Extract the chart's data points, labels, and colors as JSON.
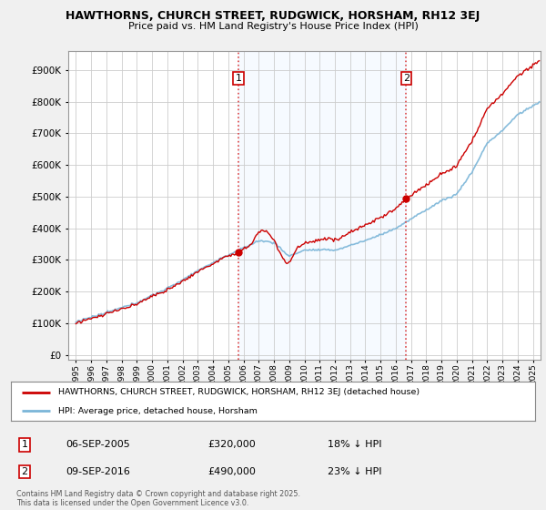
{
  "title1": "HAWTHORNS, CHURCH STREET, RUDGWICK, HORSHAM, RH12 3EJ",
  "title2": "Price paid vs. HM Land Registry's House Price Index (HPI)",
  "bg_color": "#f0f0f0",
  "plot_bg_color": "#ffffff",
  "shade_color": "#ddeeff",
  "red_color": "#cc0000",
  "blue_color": "#7ab5d8",
  "marker1_date": "06-SEP-2005",
  "marker1_price": 320000,
  "marker1_label": "18% ↓ HPI",
  "marker1_x": 2005.68,
  "marker2_date": "09-SEP-2016",
  "marker2_price": 490000,
  "marker2_label": "23% ↓ HPI",
  "marker2_x": 2016.68,
  "yticks": [
    0,
    100000,
    200000,
    300000,
    400000,
    500000,
    600000,
    700000,
    800000,
    900000
  ],
  "ylim": [
    -15000,
    960000
  ],
  "xlim": [
    1994.5,
    2025.5
  ],
  "legend_line1": "HAWTHORNS, CHURCH STREET, RUDGWICK, HORSHAM, RH12 3EJ (detached house)",
  "legend_line2": "HPI: Average price, detached house, Horsham",
  "footer": "Contains HM Land Registry data © Crown copyright and database right 2025.\nThis data is licensed under the Open Government Licence v3.0."
}
